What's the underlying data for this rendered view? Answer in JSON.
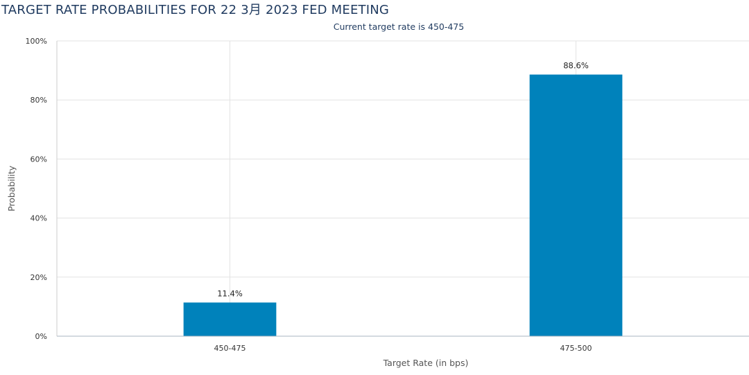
{
  "header": {
    "title": "TARGET RATE PROBABILITIES FOR 22 3月 2023 FED MEETING"
  },
  "chart_data": {
    "type": "bar",
    "subtitle": "Current target rate is 450-475",
    "categories": [
      "450-475",
      "475-500"
    ],
    "values": [
      11.4,
      88.6
    ],
    "data_labels": [
      "11.4%",
      "88.6%"
    ],
    "xlabel": "Target Rate (in bps)",
    "ylabel": "Probability",
    "ylim": [
      0,
      100
    ],
    "yticks": [
      0,
      20,
      40,
      60,
      80,
      100
    ],
    "ytick_labels": [
      "0%",
      "20%",
      "40%",
      "60%",
      "80%",
      "100%"
    ],
    "grid": true,
    "bar_color": "#0082bb"
  }
}
